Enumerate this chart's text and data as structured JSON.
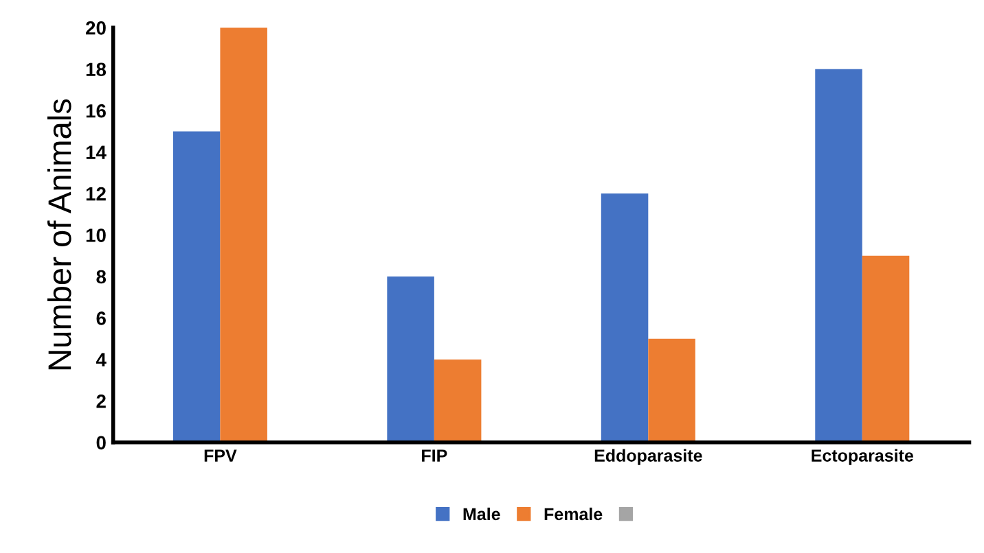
{
  "chart_data": {
    "type": "bar",
    "ylabel": "Number of Animals",
    "categories": [
      "FPV",
      "FIP",
      "Eddoparasite",
      "Ectoparasite"
    ],
    "series": [
      {
        "name": "Male",
        "color": "#4472c4",
        "values": [
          15,
          8,
          12,
          18
        ]
      },
      {
        "name": "Female",
        "color": "#ed7d31",
        "values": [
          20,
          4,
          5,
          9
        ]
      },
      {
        "color": "#a5a5a5",
        "values": [
          null,
          null,
          null,
          null
        ]
      }
    ],
    "ylim": [
      0,
      20
    ],
    "yticks": [
      0,
      2,
      4,
      6,
      8,
      10,
      12,
      14,
      16,
      18,
      20
    ],
    "grid": false,
    "legend": "bottom"
  }
}
